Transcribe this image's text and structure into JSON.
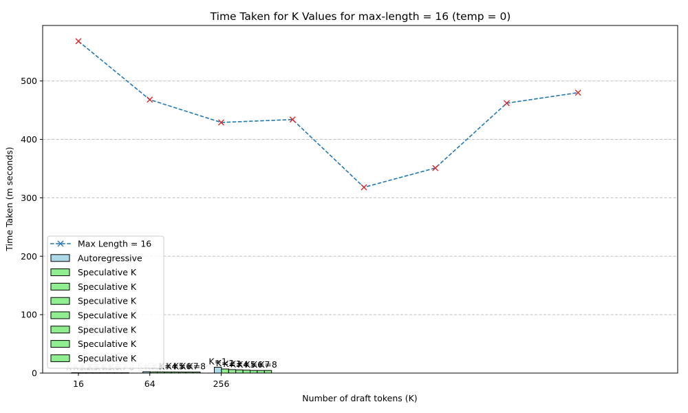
{
  "chart_data": {
    "type": "line",
    "title": "Time Taken for K Values for max-length = 16 (temp = 0)",
    "xlabel": "Number of draft tokens (K)",
    "ylabel": "Time Taken (m seconds)",
    "xlim": [
      0,
      8.5
    ],
    "ylim": [
      0,
      595
    ],
    "grid": "y-dashed",
    "legend_position": "lower-left",
    "x_tick_labels": [
      "16",
      "64",
      "256"
    ],
    "y_ticks": [
      0,
      100,
      200,
      300,
      400,
      500
    ],
    "line_series": {
      "name": "Max Length = 16",
      "x": [
        0,
        1,
        2,
        3,
        4,
        5,
        6,
        7,
        8
      ],
      "values": [
        568,
        468,
        429,
        434,
        318,
        351,
        462,
        480,
        null
      ],
      "color": "#1f77b4",
      "marker_color": "#d62728"
    },
    "bar_groups": [
      {
        "category": "16",
        "values": [
          0.6,
          0.5,
          0.5,
          0.5,
          0.5,
          0.5,
          0.5,
          0.5
        ]
      },
      {
        "category": "64",
        "values": [
          2.3,
          2.0,
          2.0,
          1.9,
          1.9,
          1.8,
          1.8,
          1.8
        ]
      },
      {
        "category": "256",
        "values": [
          10,
          7,
          6,
          5.5,
          5,
          4.5,
          4.5,
          4.5
        ]
      }
    ],
    "bar_labels": [
      "K=1",
      "K=2",
      "K=3",
      "K=4",
      "K=5",
      "K=6",
      "K=7",
      "K=8"
    ],
    "bar_series_names": [
      "Autoregressive",
      "Speculative K",
      "Speculative K",
      "Speculative K",
      "Speculative K",
      "Speculative K",
      "Speculative K",
      "Speculative K"
    ],
    "colors": {
      "autoregressive": "#add8e6",
      "speculative": "#90ee90",
      "grid": "#c0c0c0"
    },
    "legend": [
      "Max Length = 16",
      "Autoregressive",
      "Speculative K",
      "Speculative K",
      "Speculative K",
      "Speculative K",
      "Speculative K",
      "Speculative K",
      "Speculative K"
    ]
  }
}
